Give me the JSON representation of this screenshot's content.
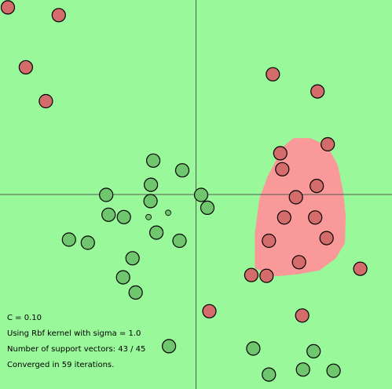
{
  "colors": {
    "background": "#99f899",
    "decision_region": "#fa999a",
    "axis": "#525c52",
    "positive_point": "#6fc66f",
    "negative_point": "#d46c6c",
    "point_outline": "#000000"
  },
  "info": {
    "c_value": "C = 0.10",
    "kernel": "Using Rbf kernel with sigma = 1.0",
    "support_vectors": "Number of support vectors: 43 / 45",
    "convergence": "Converged in 59 iterations."
  },
  "chart_data": {
    "type": "scatter",
    "xlim": [
      -5,
      5
    ],
    "ylim": [
      -5,
      5
    ],
    "axes_at_origin": true,
    "series": [
      {
        "class": "red",
        "points": [
          [
            -4.8,
            4.81
          ],
          [
            -3.5,
            4.61
          ],
          [
            -4.34,
            3.27
          ],
          [
            -3.83,
            2.4
          ],
          [
            1.96,
            3.09
          ],
          [
            3.1,
            2.65
          ],
          [
            2.15,
            1.06
          ],
          [
            3.36,
            1.29
          ],
          [
            2.2,
            0.65
          ],
          [
            3.08,
            0.22
          ],
          [
            2.55,
            -0.07
          ],
          [
            2.25,
            -0.59
          ],
          [
            3.04,
            -0.59
          ],
          [
            1.86,
            -1.19
          ],
          [
            3.33,
            -1.12
          ],
          [
            2.63,
            -1.74
          ],
          [
            1.41,
            -2.07
          ],
          [
            1.8,
            -2.09
          ],
          [
            4.19,
            -1.91
          ],
          [
            0.34,
            -3.0
          ],
          [
            2.71,
            -3.11
          ]
        ]
      },
      {
        "class": "green",
        "points": [
          [
            -1.09,
            0.87
          ],
          [
            -0.35,
            0.62
          ],
          [
            -1.15,
            0.25
          ],
          [
            -2.29,
            -0.01
          ],
          [
            0.13,
            -0.01
          ],
          [
            -1.16,
            -0.17
          ],
          [
            0.29,
            -0.34
          ],
          [
            -2.23,
            -0.52
          ],
          [
            -1.84,
            -0.58
          ],
          [
            -1.21,
            -0.58
          ],
          [
            -0.71,
            -0.47
          ],
          [
            -1.01,
            -0.98
          ],
          [
            -3.24,
            -1.16
          ],
          [
            -2.76,
            -1.24
          ],
          [
            -0.42,
            -1.19
          ],
          [
            -1.62,
            -1.64
          ],
          [
            -1.86,
            -2.13
          ],
          [
            -1.54,
            -2.52
          ],
          [
            -0.69,
            -3.9
          ],
          [
            1.46,
            -3.96
          ],
          [
            3.0,
            -4.03
          ],
          [
            2.73,
            -4.5
          ],
          [
            3.51,
            -4.53
          ],
          [
            1.86,
            -4.63
          ]
        ]
      }
    ],
    "decision_region": [
      [
        2.49,
        1.45
      ],
      [
        2.92,
        1.45
      ],
      [
        3.35,
        1.25
      ],
      [
        3.62,
        0.75
      ],
      [
        3.76,
        0.05
      ],
      [
        3.82,
        -0.55
      ],
      [
        3.8,
        -1.25
      ],
      [
        3.56,
        -1.65
      ],
      [
        3.15,
        -1.95
      ],
      [
        2.6,
        -2.05
      ],
      [
        2.05,
        -2.1
      ],
      [
        1.5,
        -1.9
      ],
      [
        1.5,
        -1.0
      ],
      [
        1.62,
        -0.1
      ],
      [
        1.82,
        0.45
      ],
      [
        2.0,
        0.8
      ],
      [
        2.18,
        1.2
      ]
    ]
  }
}
